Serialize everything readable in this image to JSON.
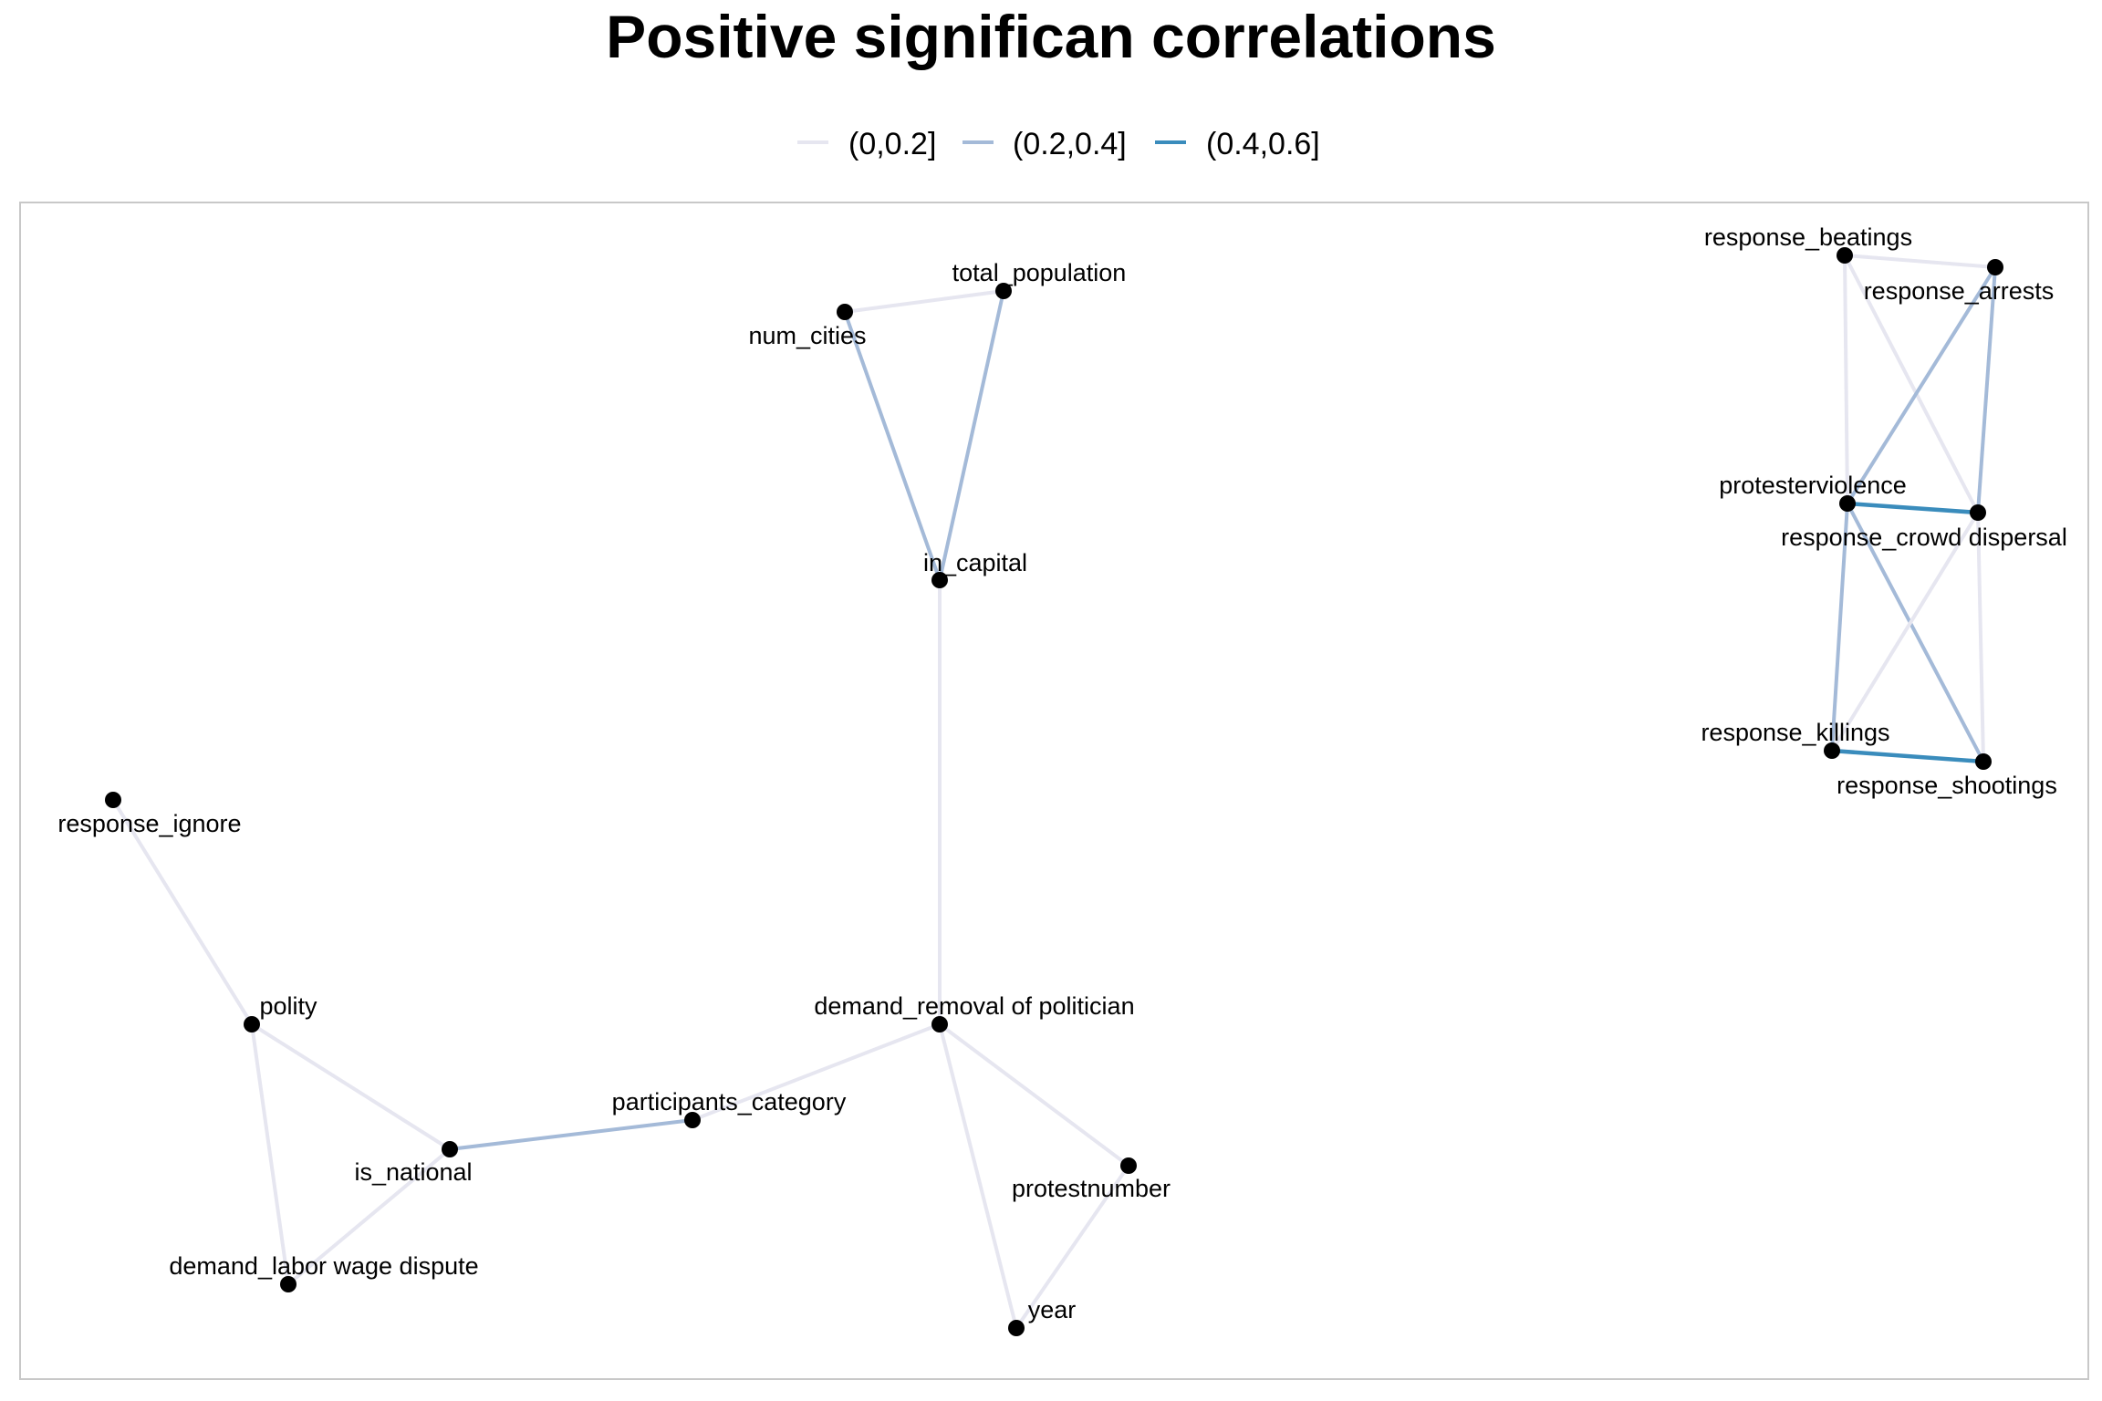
{
  "title": "Positive significan correlations",
  "legend": {
    "items": [
      {
        "label": "(0,0.2]",
        "color": "#e6e6f0"
      },
      {
        "label": "(0.2,0.4]",
        "color": "#a4bad8"
      },
      {
        "label": "(0.4,0.6]",
        "color": "#3a8cbc"
      }
    ]
  },
  "nodes": [
    {
      "label": "total_population"
    },
    {
      "label": "num_cities"
    },
    {
      "label": "in_capital"
    },
    {
      "label": "demand_removal of politician"
    },
    {
      "label": "participants_category"
    },
    {
      "label": "is_national"
    },
    {
      "label": "polity"
    },
    {
      "label": "response_ignore"
    },
    {
      "label": "demand_labor wage dispute"
    },
    {
      "label": "protestnumber"
    },
    {
      "label": "year"
    },
    {
      "label": "response_beatings"
    },
    {
      "label": "response_arrests"
    },
    {
      "label": "protesterviolence"
    },
    {
      "label": "response_crowd dispersal"
    },
    {
      "label": "response_killings"
    },
    {
      "label": "response_shootings"
    }
  ],
  "edges": [
    {
      "from": "num_cities",
      "to": "total_population",
      "class": "(0,0.2]"
    },
    {
      "from": "num_cities",
      "to": "in_capital",
      "class": "(0.2,0.4]"
    },
    {
      "from": "total_population",
      "to": "in_capital",
      "class": "(0.2,0.4]"
    },
    {
      "from": "in_capital",
      "to": "demand_removal of politician",
      "class": "(0,0.2]"
    },
    {
      "from": "demand_removal of politician",
      "to": "participants_category",
      "class": "(0,0.2]"
    },
    {
      "from": "demand_removal of politician",
      "to": "protestnumber",
      "class": "(0,0.2]"
    },
    {
      "from": "demand_removal of politician",
      "to": "year",
      "class": "(0,0.2]"
    },
    {
      "from": "protestnumber",
      "to": "year",
      "class": "(0,0.2]"
    },
    {
      "from": "participants_category",
      "to": "is_national",
      "class": "(0.2,0.4]"
    },
    {
      "from": "polity",
      "to": "is_national",
      "class": "(0,0.2]"
    },
    {
      "from": "polity",
      "to": "response_ignore",
      "class": "(0,0.2]"
    },
    {
      "from": "polity",
      "to": "demand_labor wage dispute",
      "class": "(0,0.2]"
    },
    {
      "from": "is_national",
      "to": "demand_labor wage dispute",
      "class": "(0,0.2]"
    },
    {
      "from": "response_beatings",
      "to": "response_arrests",
      "class": "(0,0.2]"
    },
    {
      "from": "response_beatings",
      "to": "protesterviolence",
      "class": "(0,0.2]"
    },
    {
      "from": "response_beatings",
      "to": "response_crowd dispersal",
      "class": "(0,0.2]"
    },
    {
      "from": "response_arrests",
      "to": "protesterviolence",
      "class": "(0.2,0.4]"
    },
    {
      "from": "response_arrests",
      "to": "response_crowd dispersal",
      "class": "(0.2,0.4]"
    },
    {
      "from": "protesterviolence",
      "to": "response_crowd dispersal",
      "class": "(0.4,0.6]"
    },
    {
      "from": "protesterviolence",
      "to": "response_killings",
      "class": "(0.2,0.4]"
    },
    {
      "from": "protesterviolence",
      "to": "response_shootings",
      "class": "(0.2,0.4]"
    },
    {
      "from": "response_crowd dispersal",
      "to": "response_killings",
      "class": "(0,0.2]"
    },
    {
      "from": "response_crowd dispersal",
      "to": "response_shootings",
      "class": "(0,0.2]"
    },
    {
      "from": "response_killings",
      "to": "response_shootings",
      "class": "(0.4,0.6]"
    }
  ]
}
